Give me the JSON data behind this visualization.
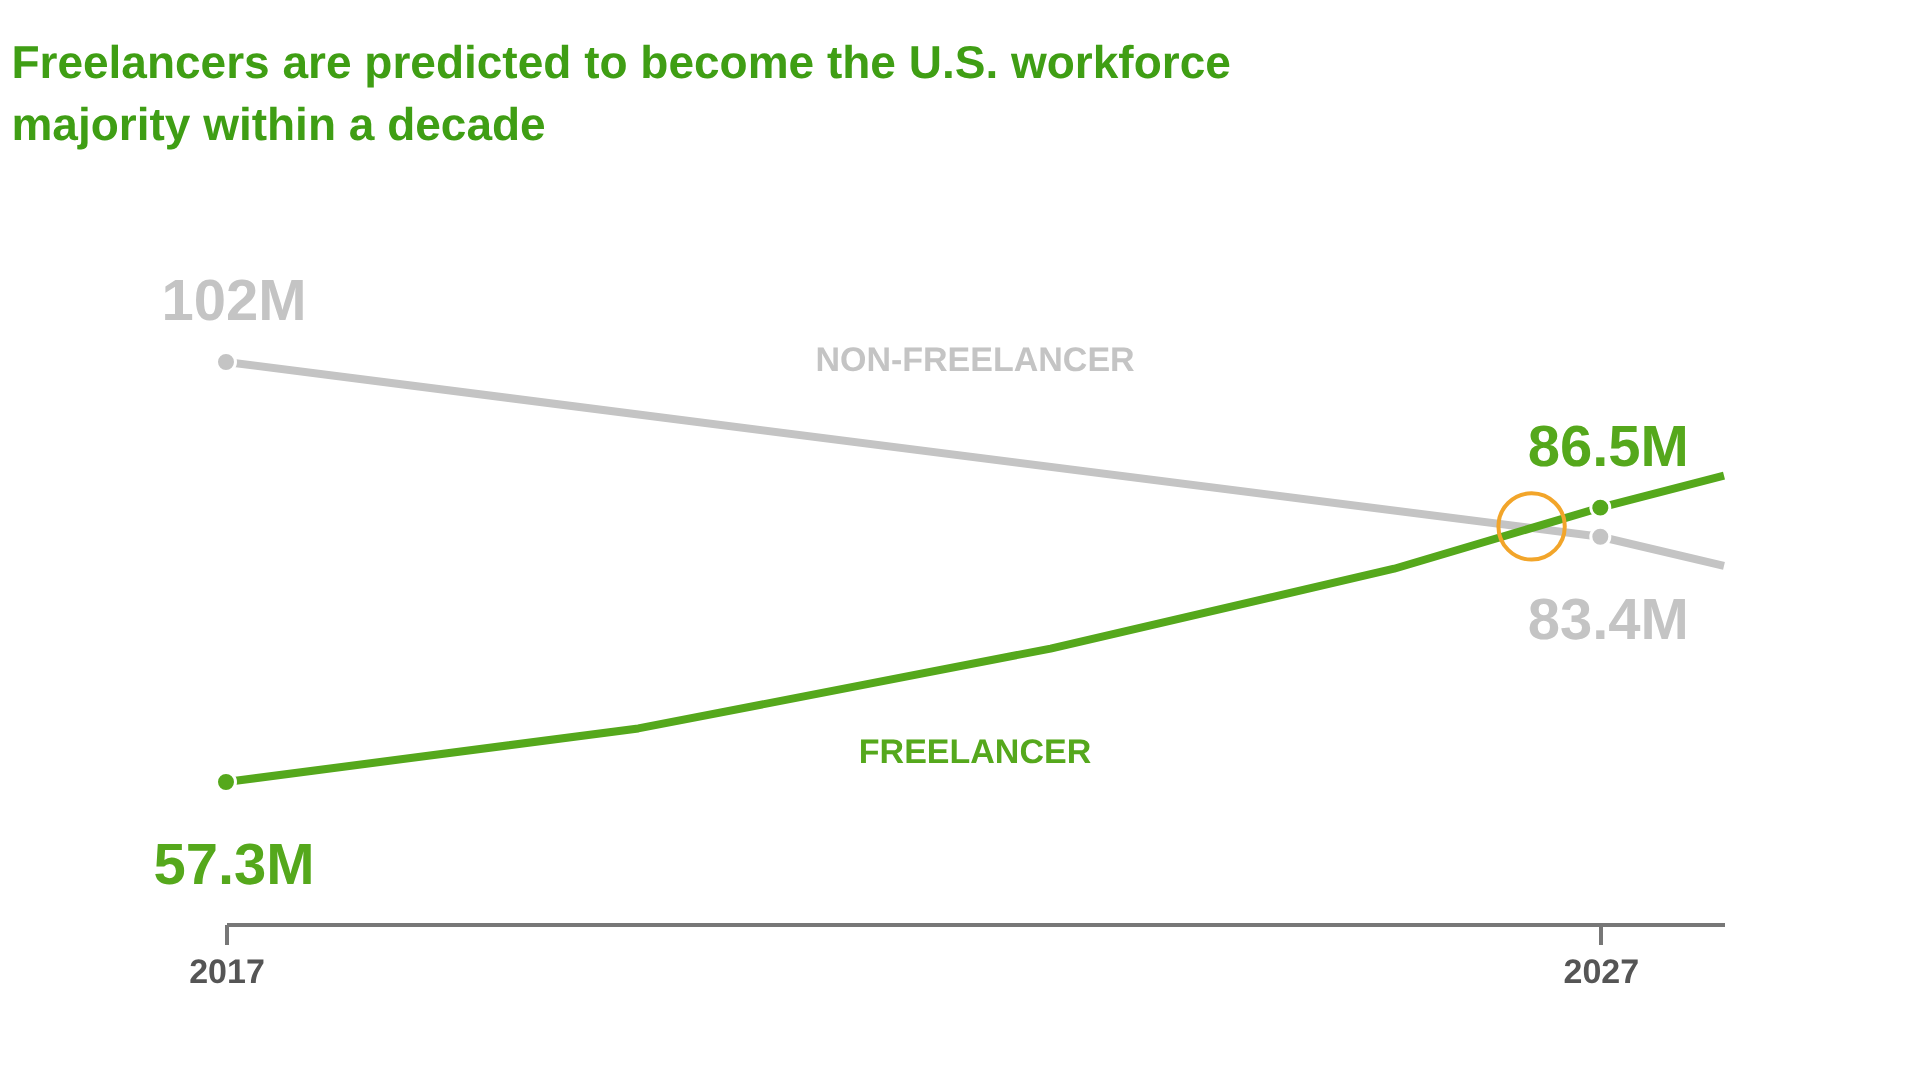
{
  "chart_data": {
    "type": "line",
    "title": [
      "Freelancers are predicted to become the U.S. workforce",
      "majority within a decade"
    ],
    "xlim": [
      2017,
      2027.9
    ],
    "xticks": [
      2017,
      2027
    ],
    "grid": false,
    "series": [
      {
        "name": "NON-FREELANCER",
        "color": "#c4c4c4",
        "x": [
          2017,
          2027,
          2027.9
        ],
        "values": [
          102,
          83.4,
          80.3
        ],
        "value_labels": [
          "102M",
          "83.4M",
          null
        ]
      },
      {
        "name": "FREELANCER",
        "color": "#55a81c",
        "x": [
          2017,
          2020,
          2023,
          2025.5,
          2027,
          2027.9
        ],
        "values": [
          57.3,
          63,
          71.5,
          80,
          86.5,
          89.9
        ],
        "value_labels": [
          "57.3M",
          null,
          null,
          null,
          "86.5M",
          null
        ]
      },
      {
        "type": "scatter",
        "color": "#f2a52a",
        "x": [
          2026.5
        ],
        "values": [
          84.5
        ]
      }
    ]
  }
}
